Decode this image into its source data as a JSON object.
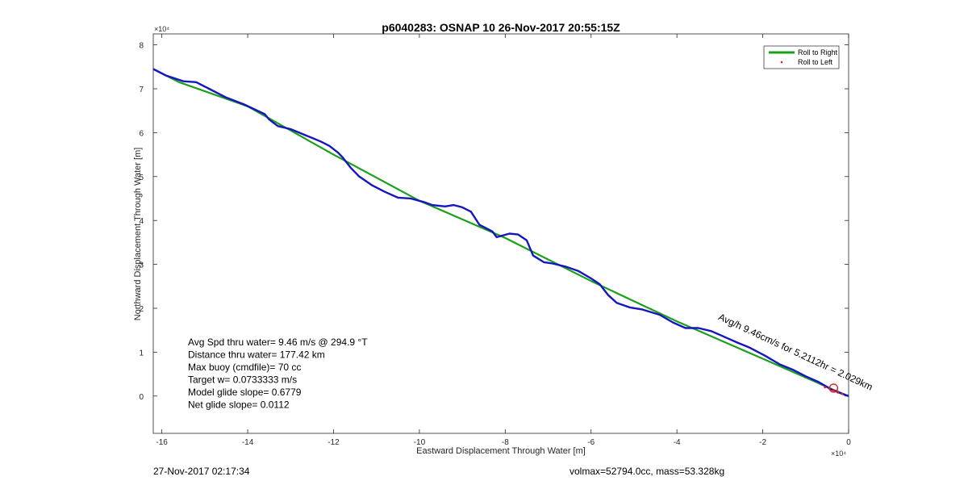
{
  "chart_data": {
    "type": "line",
    "title": "p6040283: OSNAP 10 26-Nov-2017 20:55:15Z",
    "xlabel": "Eastward Displacement Through Water [m]",
    "ylabel": "Northward Displacement Through Water [m]",
    "x_exponent": "×10⁴",
    "y_exponent": "×10⁴",
    "xlim": [
      -16.2,
      0
    ],
    "ylim": [
      -0.85,
      8.25
    ],
    "x_ticks": [
      -16,
      -14,
      -12,
      -10,
      -8,
      -6,
      -4,
      -2,
      0
    ],
    "x_tick_labels": [
      "-16",
      "-14",
      "-12",
      "-10",
      "-8",
      "-6",
      "-4",
      "-2",
      "0"
    ],
    "y_ticks": [
      0,
      1,
      2,
      3,
      4,
      5,
      6,
      7,
      8
    ],
    "y_tick_labels": [
      "0",
      "1",
      "2",
      "3",
      "4",
      "5",
      "6",
      "7",
      "8"
    ],
    "grid": false,
    "legend_position": "top-right",
    "legend": [
      "Roll to Right",
      "Roll to Left"
    ],
    "series": [
      {
        "name": "Roll to Right",
        "color": "#1aa01a",
        "points": [
          [
            -16.2,
            7.45
          ],
          [
            -15.6,
            7.15
          ],
          [
            -14,
            6.6
          ],
          [
            -12,
            5.5
          ],
          [
            -10,
            4.45
          ],
          [
            -8,
            3.6
          ],
          [
            -6,
            2.62
          ],
          [
            -4,
            1.7
          ],
          [
            -2,
            0.85
          ],
          [
            -0.3,
            0.12
          ],
          [
            0,
            0
          ]
        ]
      },
      {
        "name": "Roll to Left",
        "color": "#e02020",
        "points": [
          [
            -0.55,
            0.2
          ],
          [
            -0.45,
            0.17
          ],
          [
            -0.35,
            0.13
          ],
          [
            -0.25,
            0.08
          ],
          [
            -0.15,
            0.05
          ]
        ]
      },
      {
        "name": "",
        "color": "#1616c0",
        "points": [
          [
            -16.2,
            7.45
          ],
          [
            -15.9,
            7.3
          ],
          [
            -15.5,
            7.17
          ],
          [
            -15.2,
            7.15
          ],
          [
            -14.9,
            7.0
          ],
          [
            -14.5,
            6.8
          ],
          [
            -14.1,
            6.65
          ],
          [
            -13.6,
            6.42
          ],
          [
            -13.5,
            6.3
          ],
          [
            -13.3,
            6.15
          ],
          [
            -13.0,
            6.08
          ],
          [
            -12.8,
            6.0
          ],
          [
            -12.5,
            5.88
          ],
          [
            -12.3,
            5.8
          ],
          [
            -12.1,
            5.7
          ],
          [
            -11.9,
            5.55
          ],
          [
            -11.8,
            5.45
          ],
          [
            -11.6,
            5.2
          ],
          [
            -11.4,
            5.0
          ],
          [
            -11.1,
            4.8
          ],
          [
            -10.8,
            4.65
          ],
          [
            -10.5,
            4.52
          ],
          [
            -10.2,
            4.5
          ],
          [
            -9.9,
            4.42
          ],
          [
            -9.7,
            4.35
          ],
          [
            -9.4,
            4.32
          ],
          [
            -9.2,
            4.35
          ],
          [
            -9.0,
            4.3
          ],
          [
            -8.8,
            4.2
          ],
          [
            -8.6,
            3.9
          ],
          [
            -8.3,
            3.75
          ],
          [
            -8.2,
            3.62
          ],
          [
            -7.9,
            3.7
          ],
          [
            -7.7,
            3.68
          ],
          [
            -7.5,
            3.55
          ],
          [
            -7.35,
            3.2
          ],
          [
            -7.1,
            3.05
          ],
          [
            -6.9,
            3.02
          ],
          [
            -6.6,
            2.95
          ],
          [
            -6.3,
            2.85
          ],
          [
            -6.0,
            2.68
          ],
          [
            -5.8,
            2.55
          ],
          [
            -5.6,
            2.3
          ],
          [
            -5.4,
            2.12
          ],
          [
            -5.1,
            2.02
          ],
          [
            -4.8,
            1.97
          ],
          [
            -4.4,
            1.85
          ],
          [
            -4.1,
            1.68
          ],
          [
            -3.8,
            1.55
          ],
          [
            -3.5,
            1.55
          ],
          [
            -3.2,
            1.48
          ],
          [
            -2.9,
            1.35
          ],
          [
            -2.6,
            1.22
          ],
          [
            -2.3,
            1.1
          ],
          [
            -1.95,
            0.92
          ],
          [
            -1.6,
            0.72
          ],
          [
            -1.3,
            0.6
          ],
          [
            -1.0,
            0.45
          ],
          [
            -0.7,
            0.32
          ],
          [
            -0.4,
            0.15
          ],
          [
            -0.15,
            0.05
          ],
          [
            0,
            0
          ]
        ]
      }
    ],
    "markers": [
      {
        "name": "start",
        "color": "#e02020",
        "point": [
          -0.35,
          0.18
        ]
      }
    ],
    "annotation": {
      "text": "Avg/h 9.46cm/s for 5.2112hr = 2.029km",
      "anchor": [
        -3.05,
        1.75
      ],
      "angle_deg": 25
    },
    "stats": [
      "Avg Spd thru water=  9.46 m/s @ 294.9 °T",
      "Distance thru water= 177.42 km",
      "Max buoy (cmdfile)= 70 cc",
      "Target w= 0.0733333 m/s",
      "Model glide slope= 0.6779",
      "Net glide slope= 0.0112"
    ]
  },
  "footer": {
    "date": "27-Nov-2017 02:17:34",
    "volume_mass": "volmax=52794.0cc, mass=53.328kg"
  }
}
